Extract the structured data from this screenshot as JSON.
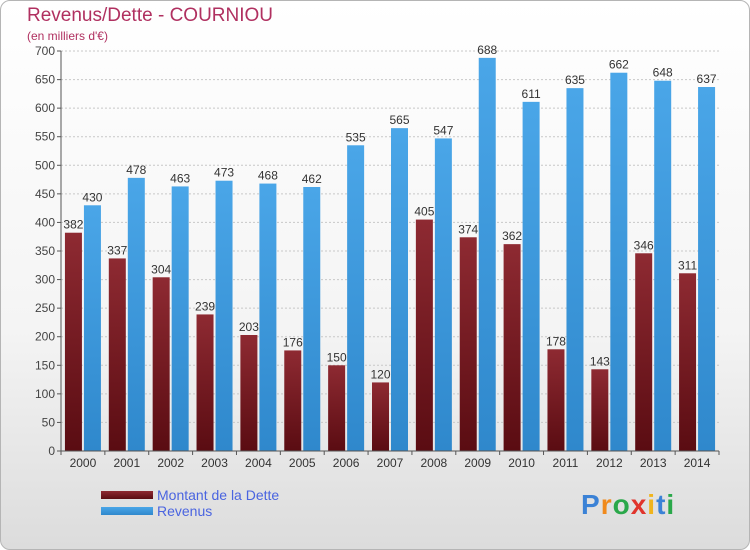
{
  "header": {
    "title": "Revenus/Dette - COURNIOU",
    "subtitle": "(en milliers d'€)"
  },
  "colors": {
    "dette": "#7a1c24",
    "revenus": "#3d99dc",
    "title": "#b03060",
    "legend_text": "#4a64e0"
  },
  "logo": {
    "letters": [
      "P",
      "r",
      "o",
      "x",
      "i",
      "t",
      "i"
    ],
    "colors": [
      "#3b82d6",
      "#f08a1c",
      "#2aa84a",
      "#e0342c",
      "#f0b41c",
      "#3b82d6",
      "#2aa84a"
    ]
  },
  "chart_data": {
    "type": "bar",
    "categories": [
      "2000",
      "2001",
      "2002",
      "2003",
      "2004",
      "2005",
      "2006",
      "2007",
      "2008",
      "2009",
      "2010",
      "2011",
      "2012",
      "2013",
      "2014"
    ],
    "series": [
      {
        "name": "Montant de la Dette",
        "values": [
          382,
          337,
          304,
          239,
          203,
          176,
          150,
          120,
          405,
          374,
          362,
          178,
          143,
          346,
          311
        ]
      },
      {
        "name": "Revenus",
        "values": [
          430,
          478,
          463,
          473,
          468,
          462,
          535,
          565,
          547,
          688,
          611,
          635,
          662,
          648,
          637
        ]
      }
    ],
    "ylim": [
      0,
      700
    ],
    "yticks": [
      0,
      50,
      100,
      150,
      200,
      250,
      300,
      350,
      400,
      450,
      500,
      550,
      600,
      650,
      700
    ],
    "grid": true,
    "legend_position": "bottom-left"
  }
}
